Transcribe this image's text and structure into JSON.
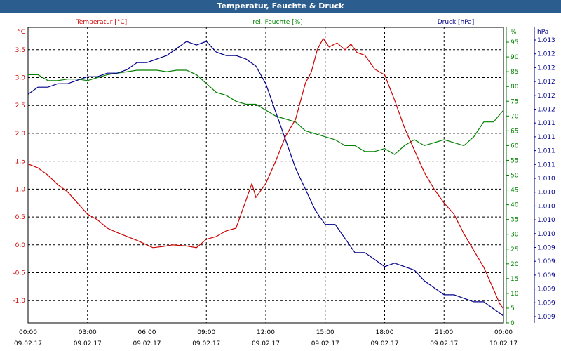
{
  "window": {
    "title": "Temperatur, Feuchte & Druck"
  },
  "chart_data": {
    "type": "line",
    "title": "Temperatur, Feuchte & Druck",
    "grid": true,
    "x_range": [
      "09.02.17 00:00",
      "10.02.17 00:00"
    ],
    "x_ticks": [
      {
        "hour": 0,
        "time": "00:00",
        "date": "09.02.17"
      },
      {
        "hour": 3,
        "time": "03:00",
        "date": "09.02.17"
      },
      {
        "hour": 6,
        "time": "06:00",
        "date": "09.02.17"
      },
      {
        "hour": 9,
        "time": "09:00",
        "date": "09.02.17"
      },
      {
        "hour": 12,
        "time": "12:00",
        "date": "09.02.17"
      },
      {
        "hour": 15,
        "time": "15:00",
        "date": "09.02.17"
      },
      {
        "hour": 18,
        "time": "18:00",
        "date": "09.02.17"
      },
      {
        "hour": 21,
        "time": "21:00",
        "date": "09.02.17"
      },
      {
        "hour": 24,
        "time": "00:00",
        "date": "10.02.17"
      }
    ],
    "axes": {
      "temperature": {
        "unit": "°C",
        "min": -1.4,
        "max": 3.9,
        "ticks": [
          "3.5",
          "3.0",
          "2.5",
          "2.0",
          "1.5",
          "1.0",
          "0.5",
          "0.0",
          "-0.5",
          "-1.0"
        ]
      },
      "humidity": {
        "unit": "%",
        "min": 0,
        "max": 100,
        "ticks": [
          "95",
          "90",
          "85",
          "80",
          "75",
          "70",
          "65",
          "60",
          "55",
          "50",
          "45",
          "40",
          "35",
          "30",
          "25",
          "20",
          "15",
          "10",
          "5",
          "0"
        ]
      },
      "pressure": {
        "unit": "hPa",
        "min": 1009.0,
        "max": 1013.2,
        "ticks": [
          "1.013",
          "1.012",
          "1.012",
          "1.012",
          "1.012",
          "1.012",
          "1.011",
          "1.011",
          "1.011",
          "1.011",
          "1.010",
          "1.010",
          "1.010",
          "1.010",
          "1.010",
          "1.009",
          "1.009",
          "1.009",
          "1.009",
          "1.009",
          "1.009"
        ]
      }
    },
    "series": [
      {
        "name": "Temperatur [°C]",
        "axis": "temperature",
        "color": "#cc0000",
        "x": [
          0,
          0.5,
          1,
          1.5,
          2,
          2.5,
          3,
          3.5,
          4,
          4.5,
          5,
          5.5,
          6,
          6.3,
          6.8,
          7.3,
          8,
          8.5,
          9,
          9.5,
          10,
          10.5,
          11,
          11.3,
          11.5,
          12,
          12.5,
          13,
          13.5,
          14,
          14.3,
          14.6,
          14.9,
          15.2,
          15.6,
          16,
          16.3,
          16.6,
          17,
          17.5,
          18,
          18.5,
          19,
          19.5,
          20,
          20.5,
          21,
          21.5,
          22,
          22.5,
          23,
          23.5,
          23.8,
          24
        ],
        "y": [
          1.45,
          1.38,
          1.25,
          1.08,
          0.95,
          0.75,
          0.55,
          0.45,
          0.3,
          0.22,
          0.15,
          0.08,
          0.0,
          -0.05,
          -0.03,
          0.0,
          -0.02,
          -0.05,
          0.1,
          0.15,
          0.25,
          0.3,
          0.8,
          1.1,
          0.85,
          1.1,
          1.5,
          1.95,
          2.25,
          2.9,
          3.1,
          3.5,
          3.7,
          3.55,
          3.62,
          3.5,
          3.6,
          3.45,
          3.4,
          3.15,
          3.05,
          2.6,
          2.1,
          1.7,
          1.3,
          1.0,
          0.75,
          0.55,
          0.2,
          -0.1,
          -0.4,
          -0.8,
          -1.05,
          -1.15
        ]
      },
      {
        "name": "rel. Feuchte [%]",
        "axis": "humidity",
        "color": "#008000",
        "x": [
          0,
          0.5,
          1,
          1.5,
          2,
          2.5,
          3,
          3.5,
          4,
          4.5,
          5,
          5.5,
          6,
          6.5,
          7,
          7.5,
          8,
          8.5,
          9,
          9.5,
          10,
          10.5,
          11,
          11.5,
          12,
          12.5,
          13,
          13.5,
          14,
          14.5,
          15,
          15.5,
          16,
          16.5,
          17,
          17.5,
          18,
          18.5,
          19,
          19.5,
          20,
          20.5,
          21,
          21.5,
          22,
          22.5,
          23,
          23.5,
          24
        ],
        "y": [
          84,
          84,
          82,
          82,
          82.5,
          82.5,
          82,
          83,
          84,
          84.5,
          85,
          85.5,
          85.5,
          85.5,
          85,
          85.5,
          85.5,
          84,
          81,
          78,
          77,
          75,
          74,
          74,
          72,
          70,
          69,
          68,
          65,
          64,
          63,
          62,
          60,
          60,
          58,
          58,
          59,
          57,
          60,
          62,
          60,
          61,
          62,
          61,
          60,
          63,
          68,
          68,
          72
        ]
      },
      {
        "name": "Druck [hPa]",
        "axis": "pressure",
        "color": "#00008b",
        "x": [
          0,
          0.5,
          1,
          1.5,
          2,
          2.5,
          3,
          3.5,
          4,
          4.5,
          5,
          5.5,
          6,
          6.5,
          7,
          7.5,
          8,
          8.5,
          9,
          9.5,
          10,
          10.5,
          11,
          11.5,
          12,
          12.5,
          13,
          13.5,
          14,
          14.5,
          15,
          15.5,
          16,
          16.5,
          17,
          17.5,
          18,
          18.5,
          19,
          19.5,
          20,
          20.5,
          21,
          21.5,
          22,
          22.5,
          23,
          23.5,
          24
        ],
        "y": [
          1012.25,
          1012.35,
          1012.35,
          1012.4,
          1012.4,
          1012.45,
          1012.5,
          1012.5,
          1012.55,
          1012.55,
          1012.6,
          1012.7,
          1012.7,
          1012.75,
          1012.8,
          1012.9,
          1013.0,
          1012.95,
          1013.0,
          1012.85,
          1012.8,
          1012.8,
          1012.75,
          1012.65,
          1012.4,
          1012.0,
          1011.6,
          1011.2,
          1010.9,
          1010.6,
          1010.4,
          1010.4,
          1010.2,
          1010.0,
          1010.0,
          1009.9,
          1009.8,
          1009.85,
          1009.8,
          1009.75,
          1009.6,
          1009.5,
          1009.4,
          1009.4,
          1009.35,
          1009.3,
          1009.3,
          1009.2,
          1009.1
        ]
      }
    ]
  }
}
